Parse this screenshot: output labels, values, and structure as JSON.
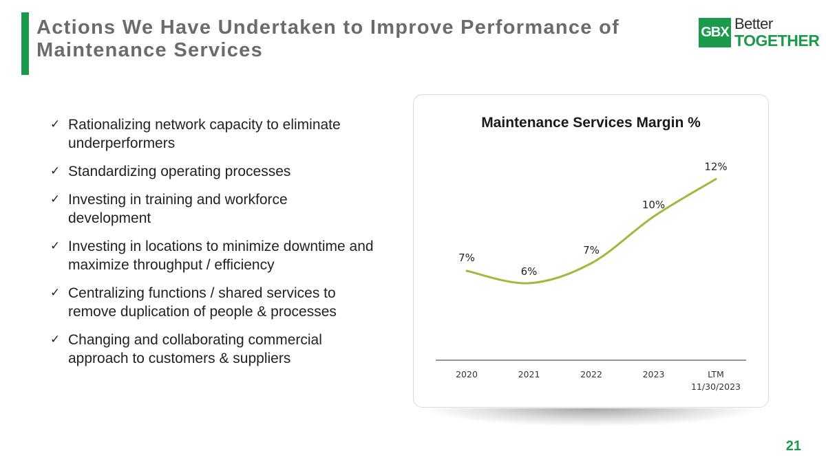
{
  "slide": {
    "title": "Actions We Have Undertaken to Improve Performance of Maintenance Services",
    "page_number": "21",
    "accent_color": "#1a9a4a"
  },
  "logo": {
    "mark": "GBX",
    "line1": "Better",
    "line2": "TOGETHER"
  },
  "bullets": {
    "check_icon": "check-icon",
    "items": [
      "Rationalizing network capacity to eliminate underperformers",
      "Standardizing operating processes",
      "Investing in training and workforce development",
      "Investing in locations to minimize downtime and maximize throughput / efficiency",
      "Centralizing functions / shared services to remove duplication of people & processes",
      "Changing and collaborating commercial approach to customers & suppliers"
    ]
  },
  "chart_data": {
    "type": "line",
    "title": "Maintenance Services Margin %",
    "categories": [
      "2020",
      "2021",
      "2022",
      "2023",
      "LTM 11/30/2023"
    ],
    "series": [
      {
        "name": "Maintenance Services Margin %",
        "values": [
          7,
          6,
          7,
          10,
          12
        ],
        "labels": [
          "7%",
          "6%",
          "7%",
          "10%",
          "12%"
        ],
        "color": "#9bbb3c"
      }
    ],
    "xlabel": "",
    "ylabel": "",
    "grid": false,
    "legend": "none"
  }
}
